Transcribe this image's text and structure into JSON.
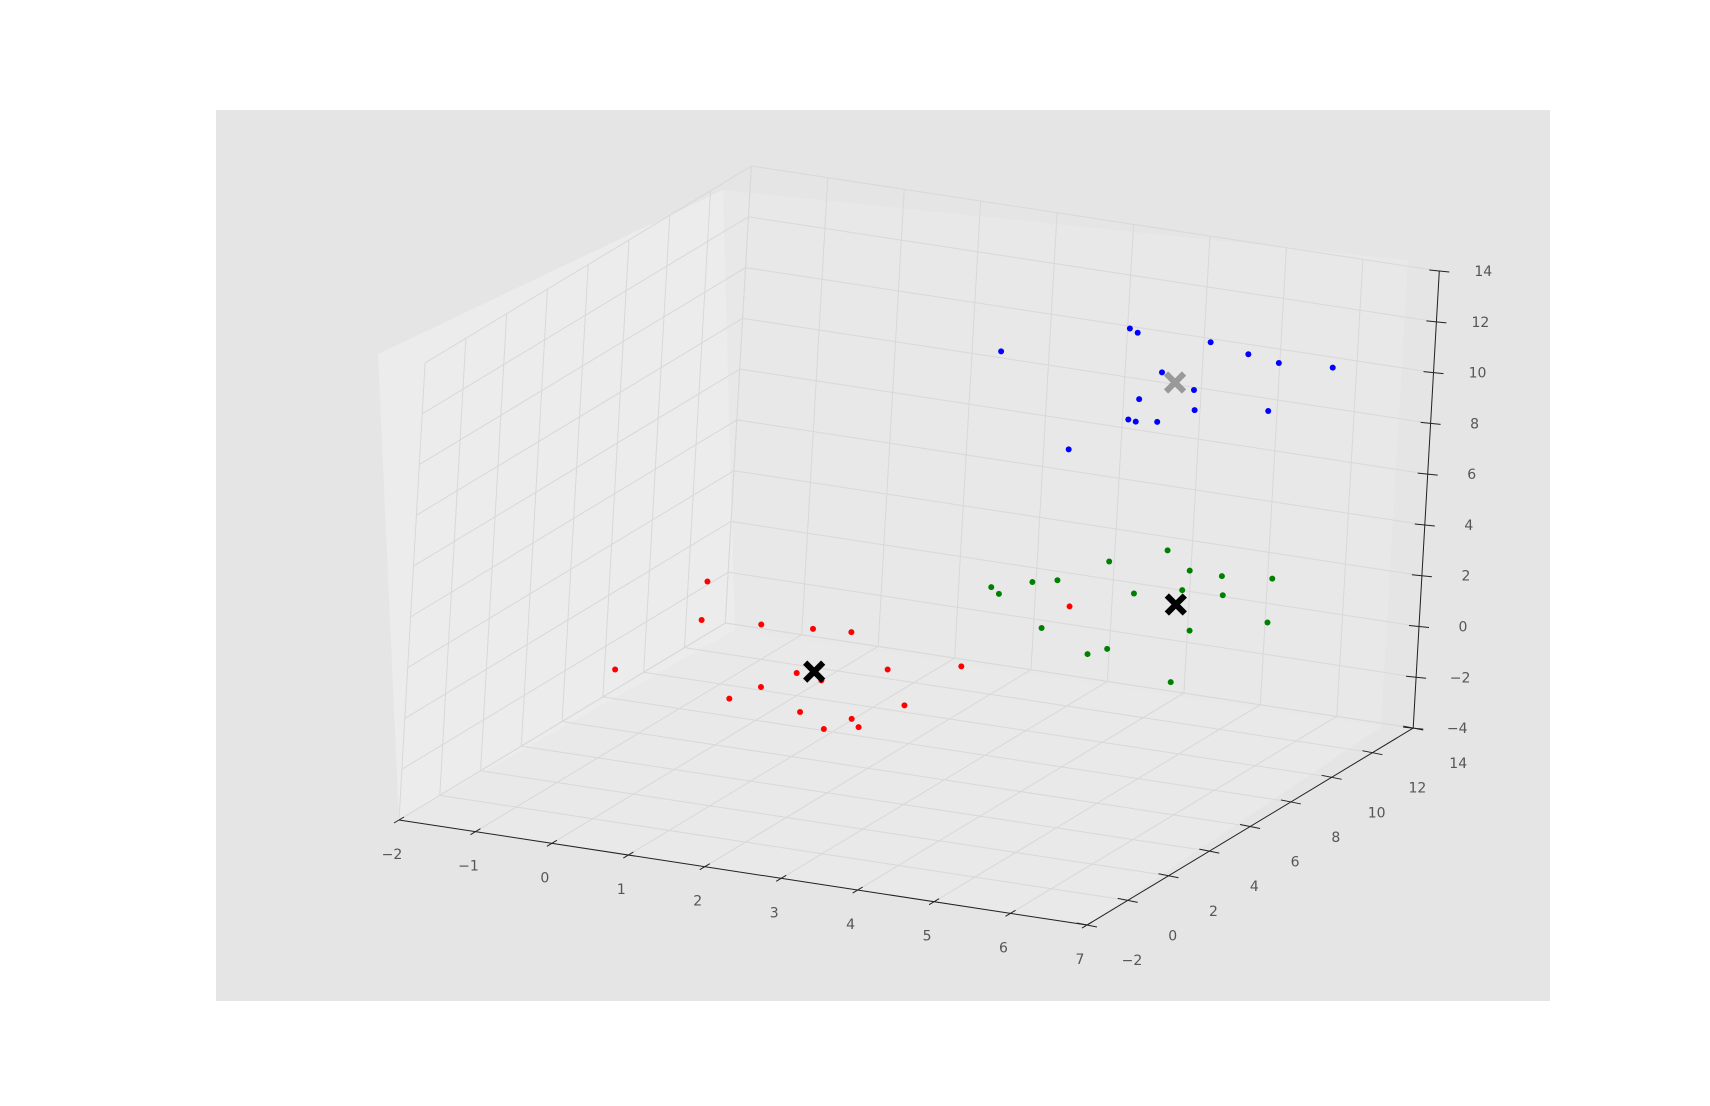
{
  "colors": {
    "figure_background": "#ffffff",
    "axes_background": "#e5e5e5",
    "pane": "#ebebeb",
    "grid": "#d8d8d8",
    "cluster_red": "#ff0000",
    "cluster_green": "#008000",
    "cluster_blue": "#0000ff",
    "centroid_black": "#000000",
    "centroid_gray": "#999999"
  },
  "chart_data": {
    "type": "scatter",
    "projection": "3d",
    "title": "",
    "xlabel": "",
    "ylabel": "",
    "zlabel": "",
    "grid": true,
    "xlim": [
      -2,
      7
    ],
    "ylim": [
      -2,
      14
    ],
    "zlim": [
      -4,
      14
    ],
    "x_ticks": [
      "−2",
      "−1",
      "0",
      "1",
      "2",
      "3",
      "4",
      "5",
      "6",
      "7"
    ],
    "y_ticks": [
      "−2",
      "0",
      "2",
      "4",
      "6",
      "8",
      "10",
      "12",
      "14"
    ],
    "z_ticks": [
      "−4",
      "−2",
      "0",
      "2",
      "4",
      "6",
      "8",
      "10",
      "12",
      "14"
    ],
    "series": [
      {
        "color": "#ff0000",
        "marker": "o",
        "points": [
          [
            2.1,
            2.0,
            0.2
          ],
          [
            2.8,
            1.9,
            0.3
          ],
          [
            1.3,
            1.5,
            0.6
          ],
          [
            1.9,
            2.5,
            1.4
          ],
          [
            2.6,
            1.3,
            0.1
          ],
          [
            3.1,
            1.1,
            0.5
          ],
          [
            3.5,
            1.8,
            1.2
          ],
          [
            1.9,
            3.2,
            2.8
          ],
          [
            2.4,
            3.2,
            2.9
          ],
          [
            1.2,
            3.3,
            2.6
          ],
          [
            2.2,
            2.6,
            1.2
          ],
          [
            3.0,
            2.8,
            1.9
          ],
          [
            0.5,
            3.0,
            2.6
          ],
          [
            0.7,
            2.4,
            4.5
          ],
          [
            -0.1,
            1.1,
            1.3
          ],
          [
            4.7,
            5.2,
            4.0
          ],
          [
            3.8,
            3.4,
            2.1
          ],
          [
            1.6,
            1.9,
            1.0
          ]
        ]
      },
      {
        "color": "#008000",
        "marker": "o",
        "points": [
          [
            2.6,
            9.8,
            1.3
          ],
          [
            2.7,
            9.0,
            2.0
          ],
          [
            3.0,
            9.9,
            1.9
          ],
          [
            3.4,
            9.6,
            2.3
          ],
          [
            3.7,
            11.0,
            2.5
          ],
          [
            4.3,
            10.0,
            2.0
          ],
          [
            4.7,
            11.2,
            2.5
          ],
          [
            5.0,
            9.7,
            2.6
          ],
          [
            5.3,
            10.5,
            2.9
          ],
          [
            4.5,
            10.8,
            3.4
          ],
          [
            5.3,
            10.6,
            2.1
          ],
          [
            5.7,
            11.5,
            2.5
          ],
          [
            4.3,
            8.8,
            0.4
          ],
          [
            3.0,
            10.5,
            -0.2
          ],
          [
            5.1,
            9.8,
            1.0
          ],
          [
            5.2,
            8.6,
            -0.4
          ],
          [
            4.1,
            8.6,
            0.2
          ],
          [
            5.9,
            10.6,
            1.3
          ]
        ]
      },
      {
        "color": "#0000ff",
        "marker": "o",
        "points": [
          [
            4.0,
            10.2,
            12.2
          ],
          [
            3.9,
            11.0,
            11.6
          ],
          [
            4.5,
            10.0,
            10.8
          ],
          [
            4.7,
            11.6,
            11.3
          ],
          [
            5.3,
            11.2,
            11.3
          ],
          [
            5.6,
            11.6,
            10.9
          ],
          [
            6.2,
            12.0,
            10.8
          ],
          [
            4.2,
            9.6,
            9.0
          ],
          [
            4.5,
            9.9,
            8.9
          ],
          [
            4.4,
            9.2,
            9.2
          ],
          [
            5.6,
            11.2,
            9.2
          ],
          [
            3.5,
            9.4,
            7.6
          ],
          [
            4.8,
            10.5,
            10.0
          ],
          [
            4.3,
            9.7,
            9.8
          ],
          [
            2.5,
            9.6,
            10.9
          ],
          [
            4.9,
            10.2,
            9.4
          ]
        ]
      },
      {
        "color": "#000000",
        "marker": "x",
        "points": [
          [
            2.1,
            2.6,
            1.5
          ],
          [
            4.8,
            10.2,
            1.7
          ]
        ]
      },
      {
        "color": "#999999",
        "marker": "x",
        "points": [
          [
            4.6,
            10.3,
            10.3
          ]
        ]
      }
    ]
  }
}
